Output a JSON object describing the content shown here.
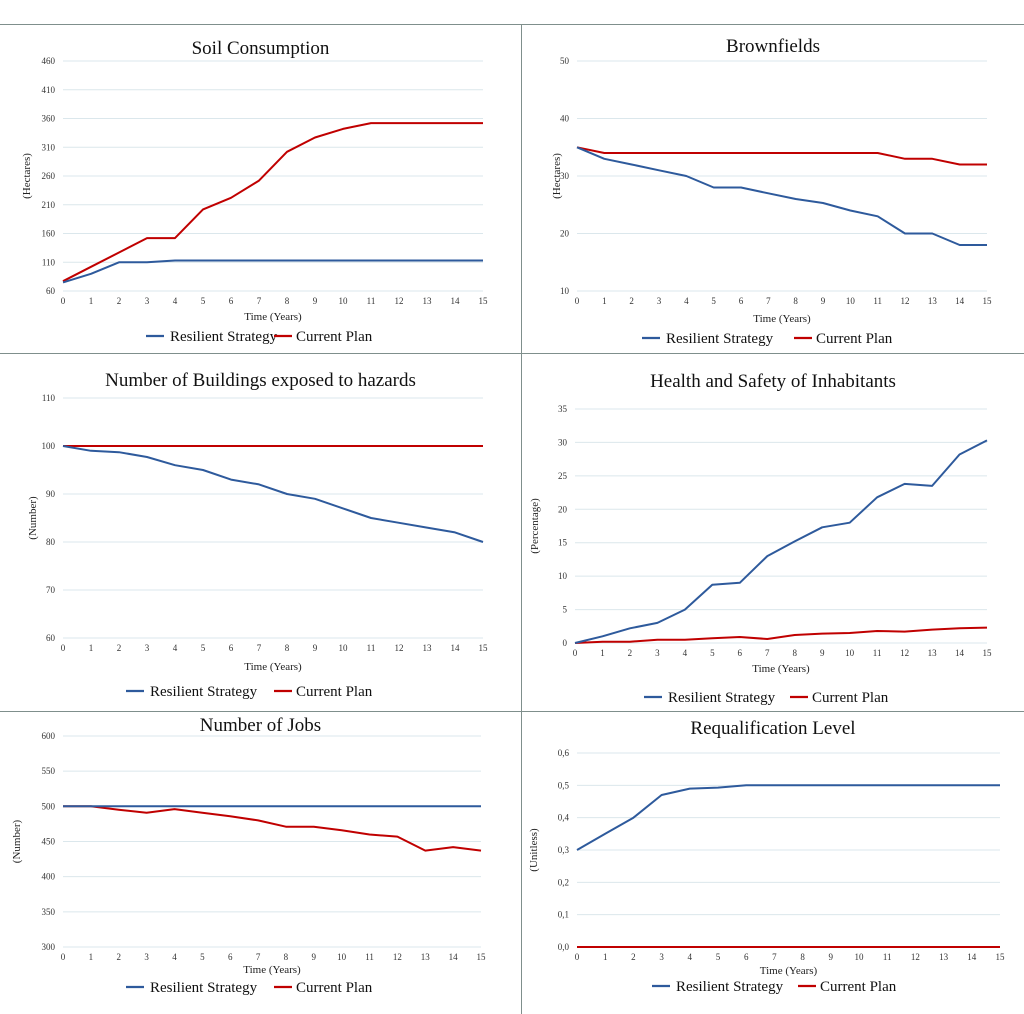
{
  "colors": {
    "resilient": "#2e5a9c",
    "current": "#c00000",
    "grid": "#dbe7ec",
    "frame": "#7f8f8c"
  },
  "legend": {
    "resilient": "Resilient Strategy",
    "current": "Current Plan"
  },
  "chart_data": [
    {
      "id": "soil",
      "type": "line",
      "title": "Soil Consumption",
      "xlabel": "Time (Years)",
      "ylabel": "(Hectares)",
      "x": [
        0,
        1,
        2,
        3,
        4,
        5,
        6,
        7,
        8,
        9,
        10,
        11,
        12,
        13,
        14,
        15
      ],
      "xticks": [
        "0",
        "1",
        "2",
        "3",
        "4",
        "5",
        "6",
        "7",
        "8",
        "9",
        "10",
        "11",
        "12",
        "13",
        "14",
        "15"
      ],
      "yticks": [
        "60",
        "110",
        "160",
        "210",
        "260",
        "310",
        "360",
        "410",
        "460"
      ],
      "ylim": [
        60,
        460
      ],
      "grid": true,
      "legend_position": "bottom",
      "series": [
        {
          "name": "Resilient Strategy",
          "key": "resilient",
          "values": [
            75,
            90,
            110,
            110,
            113,
            113,
            113,
            113,
            113,
            113,
            113,
            113,
            113,
            113,
            113,
            113
          ]
        },
        {
          "name": "Current Plan",
          "key": "current",
          "values": [
            77,
            102,
            127,
            152,
            152,
            202,
            222,
            252,
            302,
            327,
            342,
            352,
            352,
            352,
            352,
            352
          ]
        }
      ]
    },
    {
      "id": "brownfields",
      "type": "line",
      "title": "Brownfields",
      "xlabel": "Time (Years)",
      "ylabel": "(Hectares)",
      "x": [
        0,
        1,
        2,
        3,
        4,
        5,
        6,
        7,
        8,
        9,
        10,
        11,
        12,
        13,
        14,
        15
      ],
      "xticks": [
        "0",
        "1",
        "2",
        "3",
        "4",
        "5",
        "6",
        "7",
        "8",
        "9",
        "10",
        "11",
        "12",
        "13",
        "14",
        "15"
      ],
      "yticks": [
        "10",
        "20",
        "30",
        "40",
        "50"
      ],
      "ylim": [
        10,
        50
      ],
      "grid": true,
      "legend_position": "bottom",
      "series": [
        {
          "name": "Resilient Strategy",
          "key": "resilient",
          "values": [
            35,
            33,
            32,
            31,
            30,
            28,
            28,
            27,
            26,
            25.3,
            24,
            23,
            20,
            20,
            18,
            18
          ]
        },
        {
          "name": "Current Plan",
          "key": "current",
          "values": [
            35,
            34,
            34,
            34,
            34,
            34,
            34,
            34,
            34,
            34,
            34,
            34,
            33,
            33,
            32,
            32
          ]
        }
      ]
    },
    {
      "id": "buildings",
      "type": "line",
      "title": "Number of Buildings exposed to hazards",
      "xlabel": "Time (Years)",
      "ylabel": "(Number)",
      "x": [
        0,
        1,
        2,
        3,
        4,
        5,
        6,
        7,
        8,
        9,
        10,
        11,
        12,
        13,
        14,
        15
      ],
      "xticks": [
        "0",
        "1",
        "2",
        "3",
        "4",
        "5",
        "6",
        "7",
        "8",
        "9",
        "10",
        "11",
        "12",
        "13",
        "14",
        "15"
      ],
      "yticks": [
        "60",
        "70",
        "80",
        "90",
        "100",
        "110"
      ],
      "ylim": [
        60,
        110
      ],
      "grid": true,
      "legend_position": "bottom",
      "series": [
        {
          "name": "Resilient Strategy",
          "key": "resilient",
          "values": [
            100,
            99,
            98.7,
            97.7,
            96,
            95,
            93,
            92,
            90,
            89,
            87,
            85,
            84,
            83,
            82,
            80
          ]
        },
        {
          "name": "Current Plan",
          "key": "current",
          "values": [
            100,
            100,
            100,
            100,
            100,
            100,
            100,
            100,
            100,
            100,
            100,
            100,
            100,
            100,
            100,
            100
          ]
        }
      ]
    },
    {
      "id": "health",
      "type": "line",
      "title": "Health and Safety of Inhabitants",
      "xlabel": "Time (Years)",
      "ylabel": "(Percentage)",
      "x": [
        0,
        1,
        2,
        3,
        4,
        5,
        6,
        7,
        8,
        9,
        10,
        11,
        12,
        13,
        14,
        15
      ],
      "xticks": [
        "0",
        "1",
        "2",
        "3",
        "4",
        "5",
        "6",
        "7",
        "8",
        "9",
        "10",
        "11",
        "12",
        "13",
        "14",
        "15"
      ],
      "yticks": [
        "0",
        "5",
        "10",
        "15",
        "20",
        "25",
        "30",
        "35"
      ],
      "ylim": [
        0,
        35
      ],
      "grid": true,
      "legend_position": "bottom",
      "series": [
        {
          "name": "Resilient Strategy",
          "key": "resilient",
          "values": [
            0,
            1,
            2.2,
            3,
            5,
            8.7,
            9,
            13,
            15.2,
            17.3,
            18,
            21.8,
            23.8,
            23.5,
            28.2,
            30.3
          ]
        },
        {
          "name": "Current Plan",
          "key": "current",
          "values": [
            0,
            0.2,
            0.2,
            0.5,
            0.5,
            0.7,
            0.9,
            0.6,
            1.2,
            1.4,
            1.5,
            1.8,
            1.7,
            2,
            2.2,
            2.3
          ]
        }
      ]
    },
    {
      "id": "jobs",
      "type": "line",
      "title": "Number of Jobs",
      "xlabel": "Time (Years)",
      "ylabel": "(Number)",
      "x": [
        0,
        1,
        2,
        3,
        4,
        5,
        6,
        7,
        8,
        9,
        10,
        11,
        12,
        13,
        14,
        15
      ],
      "xticks": [
        "0",
        "1",
        "2",
        "3",
        "4",
        "5",
        "6",
        "7",
        "8",
        "9",
        "10",
        "11",
        "12",
        "13",
        "14",
        "15"
      ],
      "yticks": [
        "300",
        "350",
        "400",
        "450",
        "500",
        "550",
        "600"
      ],
      "ylim": [
        300,
        600
      ],
      "grid": true,
      "legend_position": "bottom",
      "series": [
        {
          "name": "Resilient Strategy",
          "key": "resilient",
          "values": [
            500,
            500,
            500,
            500,
            500,
            500,
            500,
            500,
            500,
            500,
            500,
            500,
            500,
            500,
            500,
            500
          ]
        },
        {
          "name": "Current Plan",
          "key": "current",
          "values": [
            500,
            500,
            495,
            491,
            496,
            491,
            486,
            480,
            471,
            471,
            466,
            460,
            457,
            437,
            442,
            437
          ]
        }
      ]
    },
    {
      "id": "requalification",
      "type": "line",
      "title": "Requalification Level",
      "xlabel": "Time (Years)",
      "ylabel": "(Unitless)",
      "x": [
        0,
        1,
        2,
        3,
        4,
        5,
        6,
        7,
        8,
        9,
        10,
        11,
        12,
        13,
        14,
        15
      ],
      "xticks": [
        "0",
        "1",
        "2",
        "3",
        "4",
        "5",
        "6",
        "7",
        "8",
        "9",
        "10",
        "11",
        "12",
        "13",
        "14",
        "15"
      ],
      "yticks": [
        "0,0",
        "0,1",
        "0,2",
        "0,3",
        "0,4",
        "0,5",
        "0,6"
      ],
      "ylim": [
        0,
        0.6
      ],
      "grid": true,
      "legend_position": "bottom",
      "series": [
        {
          "name": "Resilient Strategy",
          "key": "resilient",
          "values": [
            0.3,
            0.35,
            0.4,
            0.47,
            0.49,
            0.493,
            0.5,
            0.5,
            0.5,
            0.5,
            0.5,
            0.5,
            0.5,
            0.5,
            0.5,
            0.5
          ]
        },
        {
          "name": "Current Plan",
          "key": "current",
          "values": [
            0,
            0,
            0,
            0,
            0,
            0,
            0,
            0,
            0,
            0,
            0,
            0,
            0,
            0,
            0,
            0
          ]
        }
      ]
    }
  ]
}
